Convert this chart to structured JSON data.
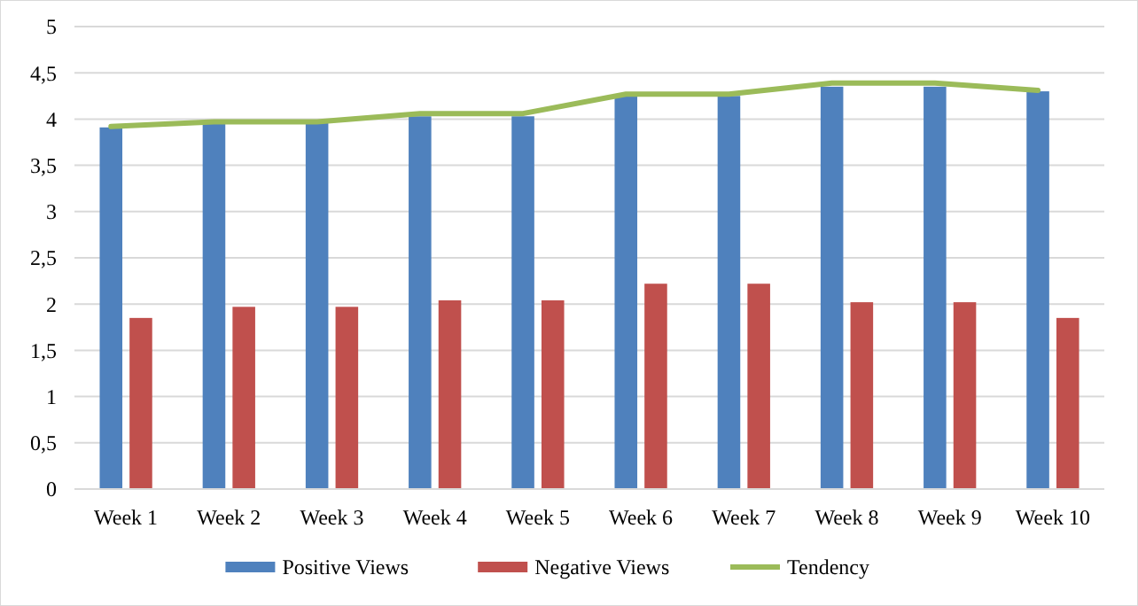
{
  "chart_data": {
    "type": "bar",
    "categories": [
      "Week 1",
      "Week 2",
      "Week 3",
      "Week 4",
      "Week 5",
      "Week 6",
      "Week 7",
      "Week 8",
      "Week 9",
      "Week 10"
    ],
    "series": [
      {
        "name": "Positive Views",
        "color": "#4f81bd",
        "values": [
          3.91,
          3.96,
          3.96,
          4.03,
          4.03,
          4.25,
          4.25,
          4.35,
          4.35,
          4.3
        ]
      },
      {
        "name": "Negative Views",
        "color": "#c0504d",
        "values": [
          1.85,
          1.97,
          1.97,
          2.04,
          2.04,
          2.22,
          2.22,
          2.02,
          2.02,
          1.85
        ]
      },
      {
        "name": "Tendency",
        "type": "line",
        "color": "#9bbb59",
        "values": [
          3.92,
          3.97,
          3.97,
          4.06,
          4.06,
          4.27,
          4.27,
          4.39,
          4.39,
          4.31
        ]
      }
    ],
    "ylim": [
      0,
      5
    ],
    "yticks": [
      0,
      {
        "value": 0.5,
        "label": "0,5"
      },
      1,
      {
        "value": 1.5,
        "label": "1,5"
      },
      2,
      {
        "value": 2.5,
        "label": "2,5"
      },
      3,
      {
        "value": 3.5,
        "label": "3,5"
      },
      4,
      {
        "value": 4.5,
        "label": "4,5"
      },
      5
    ],
    "grid": "y",
    "legend": "bottom"
  }
}
